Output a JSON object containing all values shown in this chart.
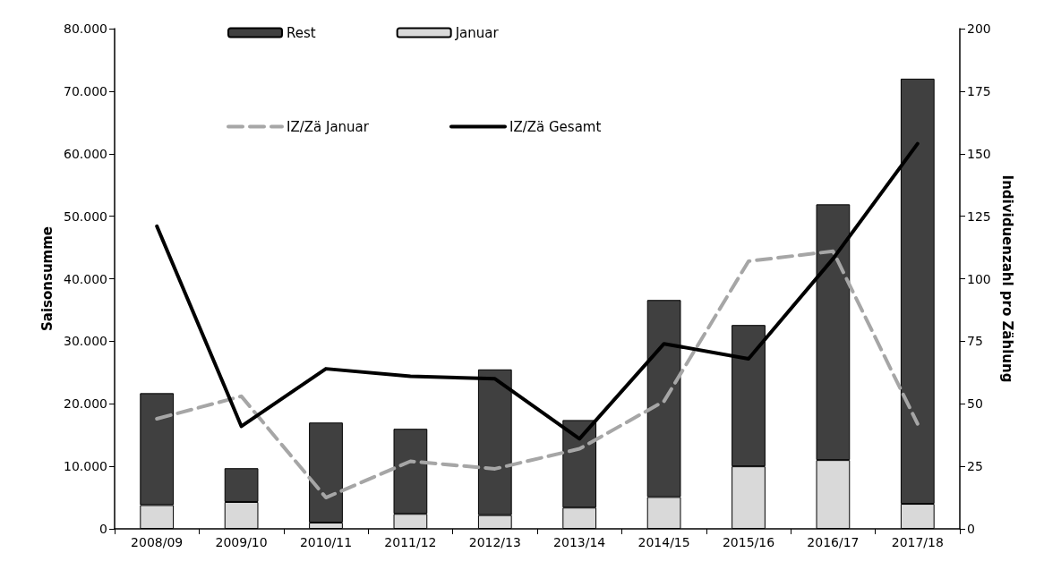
{
  "chart_data": {
    "type": "bar",
    "stacked": true,
    "categories": [
      "2008/09",
      "2009/10",
      "2010/11",
      "2011/12",
      "2012/13",
      "2013/14",
      "2014/15",
      "2015/16",
      "2016/17",
      "2017/18"
    ],
    "ylabel": "Saisonsumme",
    "y2label": "Individuenzahl pro Zählung",
    "ylim": [
      0,
      80000
    ],
    "yticks": [
      {
        "value": 0,
        "label": "0"
      },
      {
        "value": 10000,
        "label": "10.000"
      },
      {
        "value": 20000,
        "label": "20.000"
      },
      {
        "value": 30000,
        "label": "30.000"
      },
      {
        "value": 40000,
        "label": "40.000"
      },
      {
        "value": 50000,
        "label": "50.000"
      },
      {
        "value": 60000,
        "label": "60.000"
      },
      {
        "value": 70000,
        "label": "70.000"
      },
      {
        "value": 80000,
        "label": "80.000"
      }
    ],
    "y2lim": [
      0,
      200
    ],
    "y2ticks": [
      0,
      25,
      50,
      75,
      100,
      125,
      150,
      175,
      200
    ],
    "series": [
      {
        "name": "Januar",
        "color": "#d9d9d9",
        "values": [
          3800,
          4300,
          1000,
          2400,
          2200,
          3400,
          5100,
          10000,
          11000,
          4000
        ]
      },
      {
        "name": "Rest",
        "color": "#404040",
        "values": [
          17900,
          5400,
          16000,
          13600,
          23300,
          14000,
          31500,
          22600,
          40900,
          68000
        ]
      },
      {
        "name": "IZ/Zä Januar",
        "type": "line",
        "axis": "y2",
        "color": "#a6a6a6",
        "line_style": "dashed",
        "values": [
          44,
          53,
          12.5,
          27,
          24,
          32,
          51,
          107,
          111,
          42
        ]
      },
      {
        "name": "IZ/Zä Gesamt",
        "type": "line",
        "axis": "y2",
        "color": "#000000",
        "line_style": "solid",
        "values": [
          121,
          41,
          64,
          61,
          60,
          36,
          74,
          68,
          108,
          154
        ]
      }
    ],
    "legend": "top",
    "marker": "none",
    "grid": false
  }
}
